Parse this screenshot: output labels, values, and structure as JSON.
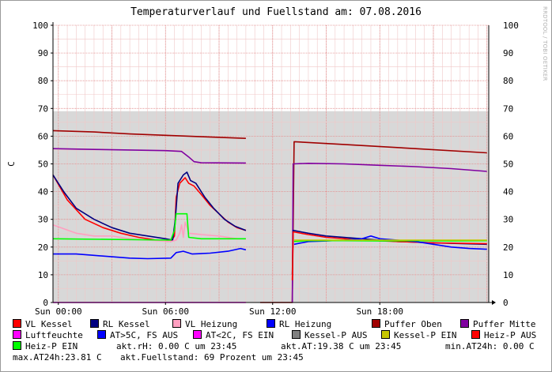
{
  "title": "Temperaturverlauf und Fuellstand am: 07.08.2016",
  "watermark": "RRDTOOL / TOBI OETIKER",
  "chart_data": {
    "type": "line",
    "ylabel": "C",
    "ylim": [
      0,
      100
    ],
    "yticks": [
      "0",
      "10",
      "20",
      "30",
      "40",
      "50",
      "60",
      "70",
      "80",
      "90",
      "100"
    ],
    "xticks": [
      {
        "label": "Sun 00:00",
        "hour": 0
      },
      {
        "label": "Sun 06:00",
        "hour": 6
      },
      {
        "label": "Sun 12:00",
        "hour": 12
      },
      {
        "label": "Sun 18:00",
        "hour": 18
      }
    ],
    "xrange_hours": [
      -0.3,
      24.1
    ],
    "fuellstand_area": {
      "name": "Fuellstand",
      "value": 69
    },
    "series": [
      {
        "key": "VL Kessel",
        "color": "#ff0000",
        "points": [
          [
            -0.3,
            46
          ],
          [
            0.5,
            37
          ],
          [
            1.5,
            30
          ],
          [
            2.5,
            27
          ],
          [
            3.5,
            25
          ],
          [
            4.5,
            23.5
          ],
          [
            5.5,
            22.5
          ],
          [
            6.3,
            22
          ],
          [
            6.5,
            24
          ],
          [
            6.6,
            38
          ],
          [
            6.8,
            43
          ],
          [
            7.1,
            45
          ],
          [
            7.3,
            43
          ],
          [
            7.6,
            42
          ],
          [
            8.0,
            39
          ],
          [
            8.5,
            35
          ],
          [
            9.0,
            32
          ],
          [
            9.5,
            29
          ],
          [
            10.0,
            27
          ],
          [
            10.5,
            26
          ]
        ]
      },
      {
        "key": "RL Kessel",
        "color": "#000080",
        "points": [
          [
            -0.3,
            46
          ],
          [
            0.3,
            40
          ],
          [
            1.0,
            34
          ],
          [
            2.0,
            30
          ],
          [
            3.0,
            27
          ],
          [
            4.0,
            25
          ],
          [
            5.0,
            24
          ],
          [
            6.0,
            23
          ],
          [
            6.4,
            22.5
          ],
          [
            6.55,
            30
          ],
          [
            6.7,
            43
          ],
          [
            7.0,
            46
          ],
          [
            7.2,
            47
          ],
          [
            7.4,
            44
          ],
          [
            7.7,
            43
          ],
          [
            8.2,
            38
          ],
          [
            8.7,
            34
          ],
          [
            9.3,
            30
          ],
          [
            9.9,
            27.5
          ],
          [
            10.5,
            26
          ]
        ]
      },
      {
        "key": "VL Heizung",
        "color": "#ff9fc0",
        "points": [
          [
            -0.3,
            28
          ],
          [
            1,
            25
          ],
          [
            2,
            24
          ],
          [
            3,
            24
          ],
          [
            4,
            23
          ],
          [
            5,
            22.5
          ],
          [
            6.3,
            22
          ],
          [
            6.6,
            22.5
          ],
          [
            6.8,
            25
          ],
          [
            6.9,
            28
          ],
          [
            7.0,
            23.5
          ],
          [
            7.1,
            29
          ],
          [
            7.3,
            25
          ],
          [
            8,
            24.5
          ],
          [
            9,
            24
          ],
          [
            10,
            23
          ],
          [
            10.5,
            23
          ]
        ]
      },
      {
        "key": "RL Heizung",
        "color": "#0000ff",
        "points": [
          [
            -0.3,
            17.5
          ],
          [
            1,
            17.5
          ],
          [
            2,
            17
          ],
          [
            3,
            16.5
          ],
          [
            4,
            16
          ],
          [
            5,
            15.8
          ],
          [
            6.3,
            16
          ],
          [
            6.6,
            18
          ],
          [
            7.0,
            18.5
          ],
          [
            7.5,
            17.5
          ],
          [
            8.5,
            17.8
          ],
          [
            9.5,
            18.5
          ],
          [
            10.2,
            19.5
          ],
          [
            10.5,
            19
          ]
        ]
      },
      {
        "key": "Puffer Oben",
        "color": "#a00000",
        "points": [
          [
            -0.3,
            62
          ],
          [
            2,
            61.5
          ],
          [
            4,
            60.8
          ],
          [
            6,
            60.3
          ],
          [
            8,
            59.8
          ],
          [
            10.5,
            59.2
          ]
        ]
      },
      {
        "key": "Puffer Mitte",
        "color": "#8000a0",
        "points": [
          [
            -0.3,
            55.5
          ],
          [
            2,
            55.2
          ],
          [
            4,
            55
          ],
          [
            6,
            54.8
          ],
          [
            6.9,
            54.5
          ],
          [
            7.3,
            52.5
          ],
          [
            7.6,
            50.8
          ],
          [
            8.0,
            50.4
          ],
          [
            10.5,
            50.3
          ]
        ]
      },
      {
        "key": "Heiz-P EIN",
        "color": "#00ff00",
        "points": [
          [
            -0.3,
            23
          ],
          [
            6.3,
            22.5
          ],
          [
            6.5,
            26
          ],
          [
            6.6,
            32
          ],
          [
            7.2,
            32
          ],
          [
            7.3,
            23.5
          ],
          [
            8,
            23
          ],
          [
            10.5,
            23
          ]
        ]
      },
      {
        "key": "Luftfeuchte",
        "color": "#ff00ff",
        "points": [
          [
            -0.3,
            0
          ],
          [
            10.5,
            0
          ]
        ]
      },
      {
        "key": "Puffer Oben (2)",
        "color": "#a00000",
        "points": [
          [
            11.3,
            0
          ],
          [
            13.1,
            0
          ],
          [
            13.2,
            58
          ],
          [
            16,
            57
          ],
          [
            20,
            55.5
          ],
          [
            24,
            54
          ]
        ]
      },
      {
        "key": "Puffer Mitte (2)",
        "color": "#8000a0",
        "points": [
          [
            13.1,
            0
          ],
          [
            13.15,
            50
          ],
          [
            14,
            50.2
          ],
          [
            16,
            50
          ],
          [
            18,
            49.5
          ],
          [
            20,
            49
          ],
          [
            22,
            48.3
          ],
          [
            24,
            47.3
          ]
        ]
      },
      {
        "key": "RL Kessel (2)",
        "color": "#000080",
        "points": [
          [
            13.1,
            10
          ],
          [
            13.15,
            26
          ],
          [
            14,
            25
          ],
          [
            15,
            24
          ],
          [
            17,
            23
          ],
          [
            19,
            22
          ],
          [
            21,
            21.5
          ],
          [
            24,
            21
          ]
        ]
      },
      {
        "key": "VL Kessel (2)",
        "color": "#ff0000",
        "points": [
          [
            13.1,
            8
          ],
          [
            13.15,
            25.5
          ],
          [
            14,
            24.5
          ],
          [
            15,
            23.5
          ],
          [
            17,
            22.5
          ],
          [
            19,
            22
          ],
          [
            21,
            21.5
          ],
          [
            24,
            21.2
          ]
        ]
      },
      {
        "key": "RL Heizung (2)",
        "color": "#0000ff",
        "points": [
          [
            13.2,
            21
          ],
          [
            14,
            22
          ],
          [
            15,
            22.2
          ],
          [
            16,
            22.5
          ],
          [
            17,
            23
          ],
          [
            17.5,
            24
          ],
          [
            18,
            23
          ],
          [
            19,
            22.5
          ],
          [
            20,
            22
          ],
          [
            21,
            21
          ],
          [
            22,
            20
          ],
          [
            23,
            19.5
          ],
          [
            24,
            19.2
          ]
        ]
      },
      {
        "key": "Heiz-P EIN (2)",
        "color": "#00ff00",
        "points": [
          [
            13.2,
            22
          ],
          [
            14,
            22.3
          ],
          [
            16,
            22.3
          ],
          [
            18,
            22.2
          ],
          [
            20,
            22.3
          ],
          [
            22,
            22.2
          ],
          [
            24,
            22.3
          ]
        ]
      },
      {
        "key": "Kessel-P EIN (2)",
        "color": "#c8c800",
        "points": [
          [
            13.2,
            22.5
          ],
          [
            16,
            22.5
          ],
          [
            20,
            22.5
          ],
          [
            24,
            22.5
          ]
        ]
      }
    ]
  },
  "legend": [
    {
      "label": "VL Kessel",
      "color": "#ff0000"
    },
    {
      "label": "RL Kessel",
      "color": "#000080"
    },
    {
      "label": "VL Heizung",
      "color": "#ff9fc0"
    },
    {
      "label": "RL Heizung",
      "color": "#0000ff"
    },
    {
      "label": "Puffer Oben",
      "color": "#a00000"
    },
    {
      "label": "Puffer Mitte",
      "color": "#8000a0"
    },
    {
      "label": "Luftfeuchte",
      "color": "#ff00ff"
    },
    {
      "label": "AT>5C, FS AUS",
      "color": "#0000ff"
    },
    {
      "label": "AT<2C, FS EIN",
      "color": "#ff00ff"
    },
    {
      "label": "Kessel-P AUS",
      "color": "#808080"
    },
    {
      "label": "Kessel-P EIN",
      "color": "#c8c800"
    },
    {
      "label": "Heiz-P AUS",
      "color": "#ff0000"
    },
    {
      "label": "Heiz-P EIN",
      "color": "#00ff00"
    }
  ],
  "stats": {
    "rh": "akt.rH: 0.00 C um 23:45",
    "at": "akt.AT:19.38 C um 23:45",
    "min": "min.AT24h: 0.00 C",
    "max": "max.AT24h:23.81 C",
    "fuell": "akt.Fuellstand:   69 Prozent um 23:45"
  }
}
